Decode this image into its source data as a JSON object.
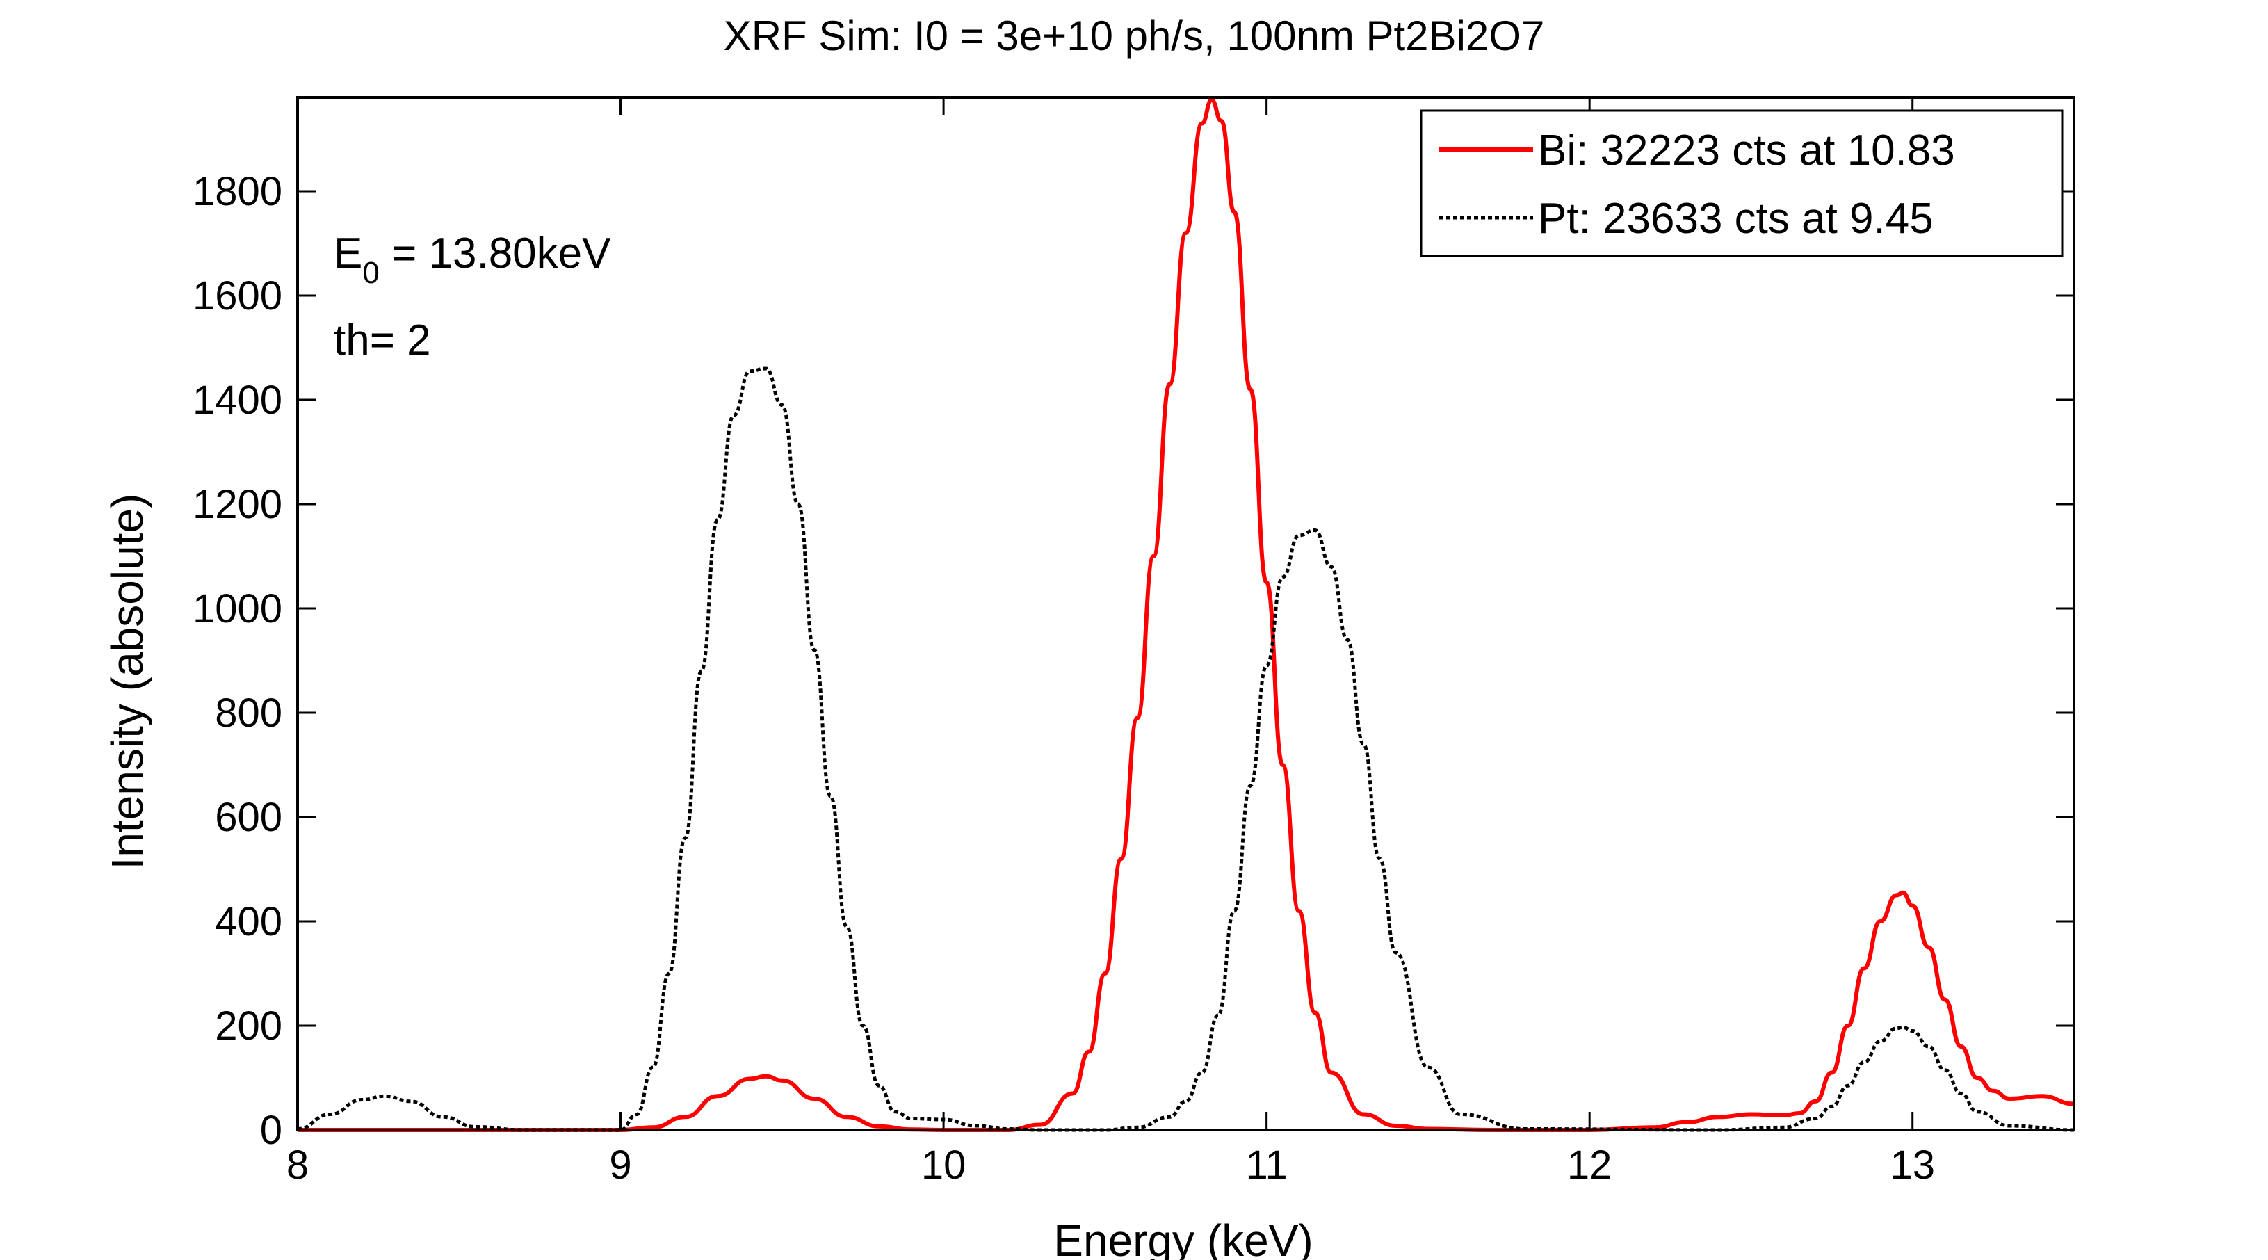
{
  "chart_data": {
    "type": "line",
    "title": "XRF Sim: I0 = 3e+10 ph/s, 100nm Pt2Bi2O7",
    "xlabel": "Energy (keV)",
    "ylabel": "Intensity (absolute)",
    "xlim": [
      8,
      13.5
    ],
    "ylim": [
      0,
      1980
    ],
    "xticks": [
      8,
      9,
      10,
      11,
      12,
      13
    ],
    "yticks": [
      0,
      200,
      400,
      600,
      800,
      1000,
      1200,
      1400,
      1600,
      1800
    ],
    "grid": false,
    "legend_position": "top-right",
    "annotations": {
      "e0_main": "E",
      "e0_sub": "0",
      "e0_value": " = 13.80keV",
      "th": "th= 2"
    },
    "series": [
      {
        "name": "Bi: 32223 cts at 10.83",
        "color": "#ff0000",
        "style": "solid",
        "x": [
          8.0,
          8.5,
          9.0,
          9.1,
          9.2,
          9.3,
          9.4,
          9.45,
          9.5,
          9.6,
          9.7,
          9.8,
          9.9,
          10.0,
          10.2,
          10.3,
          10.4,
          10.45,
          10.5,
          10.55,
          10.6,
          10.65,
          10.7,
          10.75,
          10.8,
          10.83,
          10.86,
          10.9,
          10.95,
          11.0,
          11.05,
          11.1,
          11.15,
          11.2,
          11.3,
          11.4,
          11.5,
          11.7,
          12.0,
          12.2,
          12.3,
          12.4,
          12.5,
          12.6,
          12.65,
          12.7,
          12.75,
          12.8,
          12.85,
          12.9,
          12.95,
          12.97,
          13.0,
          13.05,
          13.1,
          13.15,
          13.2,
          13.25,
          13.3,
          13.4,
          13.5
        ],
        "y": [
          0,
          0,
          0,
          5,
          25,
          65,
          98,
          103,
          95,
          60,
          25,
          7,
          1,
          0,
          0,
          10,
          70,
          150,
          300,
          520,
          790,
          1100,
          1430,
          1720,
          1930,
          1975,
          1935,
          1760,
          1420,
          1050,
          700,
          420,
          225,
          110,
          30,
          8,
          2,
          0,
          0,
          5,
          15,
          25,
          30,
          28,
          32,
          55,
          110,
          200,
          310,
          400,
          450,
          455,
          430,
          350,
          250,
          160,
          100,
          75,
          60,
          65,
          50
        ]
      },
      {
        "name": "Pt: 23633 cts at 9.45",
        "color": "#000000",
        "style": "dotted",
        "x": [
          8.0,
          8.1,
          8.2,
          8.27,
          8.35,
          8.45,
          8.55,
          8.7,
          9.0,
          9.05,
          9.1,
          9.15,
          9.2,
          9.25,
          9.3,
          9.35,
          9.4,
          9.45,
          9.5,
          9.55,
          9.6,
          9.65,
          9.7,
          9.75,
          9.8,
          9.85,
          9.9,
          10.0,
          10.1,
          10.2,
          10.3,
          10.5,
          10.6,
          10.7,
          10.75,
          10.8,
          10.85,
          10.9,
          10.95,
          11.0,
          11.05,
          11.1,
          11.15,
          11.2,
          11.25,
          11.3,
          11.35,
          11.4,
          11.5,
          11.6,
          11.8,
          12.4,
          12.6,
          12.7,
          12.75,
          12.8,
          12.85,
          12.9,
          12.95,
          12.97,
          13.0,
          13.05,
          13.1,
          13.15,
          13.2,
          13.3,
          13.5
        ],
        "y": [
          2,
          30,
          58,
          65,
          55,
          25,
          6,
          0,
          0,
          30,
          120,
          300,
          560,
          880,
          1170,
          1370,
          1455,
          1460,
          1390,
          1200,
          920,
          640,
          390,
          200,
          85,
          35,
          22,
          20,
          8,
          2,
          0,
          0,
          5,
          25,
          55,
          110,
          220,
          420,
          660,
          890,
          1060,
          1140,
          1150,
          1080,
          940,
          740,
          520,
          340,
          120,
          30,
          2,
          0,
          5,
          22,
          45,
          85,
          130,
          170,
          195,
          197,
          190,
          160,
          115,
          70,
          35,
          8,
          0
        ]
      }
    ]
  }
}
